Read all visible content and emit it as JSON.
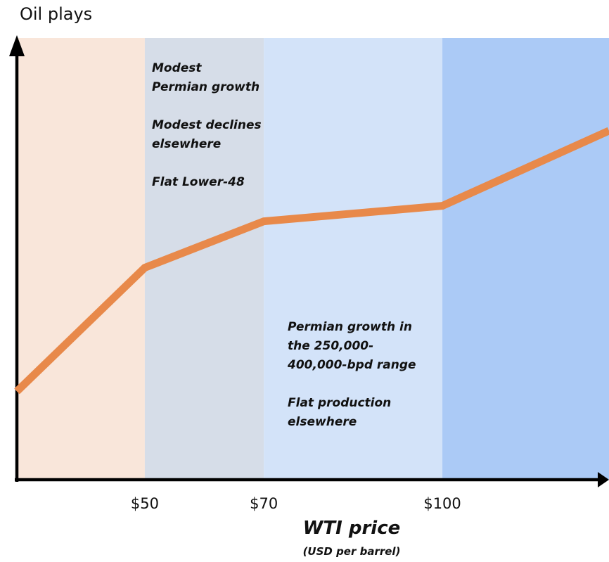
{
  "chart_data": {
    "type": "line",
    "ylabel": "Oil plays",
    "xlabel": "WTI price",
    "xlabel_sub": "(USD per barrel)",
    "x_ticks": [
      50,
      70,
      100
    ],
    "x_tick_labels": [
      "$50",
      "$70",
      "$100"
    ],
    "xlim": [
      28.5,
      128
    ],
    "ylim": [
      0,
      10
    ],
    "series": [
      {
        "values": [
          [
            28.5,
            2.0
          ],
          [
            50,
            4.8
          ],
          [
            70,
            5.85
          ],
          [
            100,
            6.2
          ],
          [
            128,
            7.9
          ]
        ]
      }
    ],
    "bands": [
      {
        "from": 28.5,
        "to": 50,
        "color": "#f9e6da"
      },
      {
        "from": 50,
        "to": 70,
        "color": "#d6dde8"
      },
      {
        "from": 70,
        "to": 100,
        "color": "#d3e3f9"
      },
      {
        "from": 100,
        "to": 128,
        "color": "#abcaf6"
      }
    ],
    "line_color": "#e8894a",
    "annotations": [
      {
        "lines": [
          "Modest",
          "Permian growth",
          "",
          "Modest declines",
          "elsewhere",
          "",
          "Flat Lower-48"
        ]
      },
      {
        "lines": [
          "Permian growth in",
          "the 250,000-",
          "400,000-bpd range",
          "",
          "Flat production",
          "elsewhere"
        ]
      }
    ]
  }
}
